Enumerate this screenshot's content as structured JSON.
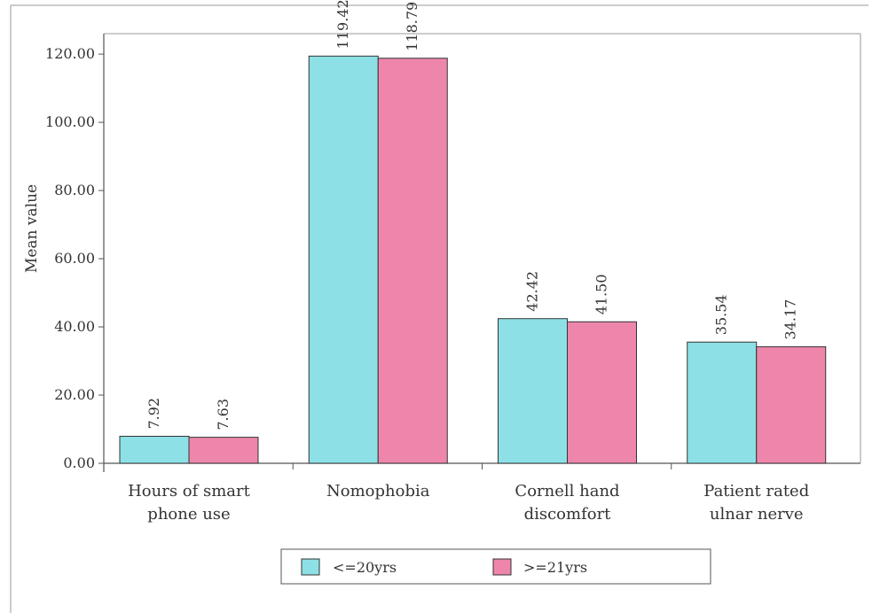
{
  "chart_data": {
    "type": "bar",
    "title": "",
    "xlabel": "",
    "ylabel": "Mean value",
    "ylim": [
      0,
      126
    ],
    "yticks": [
      "0.00",
      "20.00",
      "40.00",
      "60.00",
      "80.00",
      "100.00",
      "120.00"
    ],
    "ytick_values": [
      0,
      20,
      40,
      60,
      80,
      100,
      120
    ],
    "categories": [
      [
        "Hours of smart",
        "phone use"
      ],
      [
        "Nomophobia"
      ],
      [
        "Cornell hand",
        "discomfort"
      ],
      [
        "Patient rated",
        "ulnar nerve"
      ]
    ],
    "series": [
      {
        "name": "<=20yrs",
        "color": "#8de1e6",
        "values": [
          7.92,
          119.42,
          42.42,
          35.54
        ],
        "labels": [
          "7.92",
          "119.42",
          "42.42",
          "35.54"
        ]
      },
      {
        "name": ">=21yrs",
        "color": "#ee86ac",
        "values": [
          7.63,
          118.79,
          41.5,
          34.17
        ],
        "labels": [
          "7.63",
          "118.79",
          "41.50",
          "34.17"
        ]
      }
    ],
    "grid": false,
    "legend_position": "bottom-center"
  },
  "colors": {
    "axis": "#555555",
    "frame": "#999999",
    "bar_stroke": "#333333"
  }
}
